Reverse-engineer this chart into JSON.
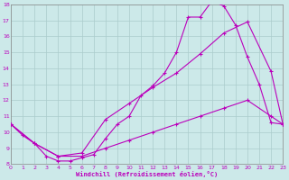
{
  "xlabel": "Windchill (Refroidissement éolien,°C)",
  "xlim": [
    0,
    23
  ],
  "ylim": [
    8,
    18
  ],
  "xticks": [
    0,
    1,
    2,
    3,
    4,
    5,
    6,
    7,
    8,
    9,
    10,
    11,
    12,
    13,
    14,
    15,
    16,
    17,
    18,
    19,
    20,
    21,
    22,
    23
  ],
  "yticks": [
    8,
    9,
    10,
    11,
    12,
    13,
    14,
    15,
    16,
    17,
    18
  ],
  "bg_color": "#cce9e9",
  "line_color": "#bb00bb",
  "grid_color": "#b0d0d0",
  "line1_x": [
    0,
    1,
    2,
    3,
    4,
    5,
    6,
    7,
    8,
    9,
    10,
    11,
    12,
    13,
    14,
    15,
    16,
    17,
    18,
    19,
    20,
    21,
    22,
    23
  ],
  "line1_y": [
    10.5,
    9.8,
    9.3,
    8.5,
    8.2,
    8.2,
    8.4,
    8.6,
    9.6,
    10.5,
    11.0,
    12.3,
    12.9,
    13.7,
    15.0,
    17.2,
    17.2,
    18.2,
    17.9,
    16.7,
    14.7,
    13.0,
    10.6,
    10.5
  ],
  "line2_x": [
    0,
    2,
    4,
    6,
    8,
    10,
    12,
    14,
    16,
    18,
    20,
    22,
    23
  ],
  "line2_y": [
    10.5,
    9.3,
    8.5,
    8.7,
    10.8,
    11.8,
    12.8,
    13.7,
    14.9,
    16.2,
    16.9,
    13.8,
    10.5
  ],
  "line3_x": [
    0,
    2,
    4,
    6,
    8,
    10,
    12,
    14,
    16,
    18,
    20,
    22,
    23
  ],
  "line3_y": [
    10.5,
    9.3,
    8.5,
    8.5,
    9.0,
    9.5,
    10.0,
    10.5,
    11.0,
    11.5,
    12.0,
    11.0,
    10.5
  ]
}
